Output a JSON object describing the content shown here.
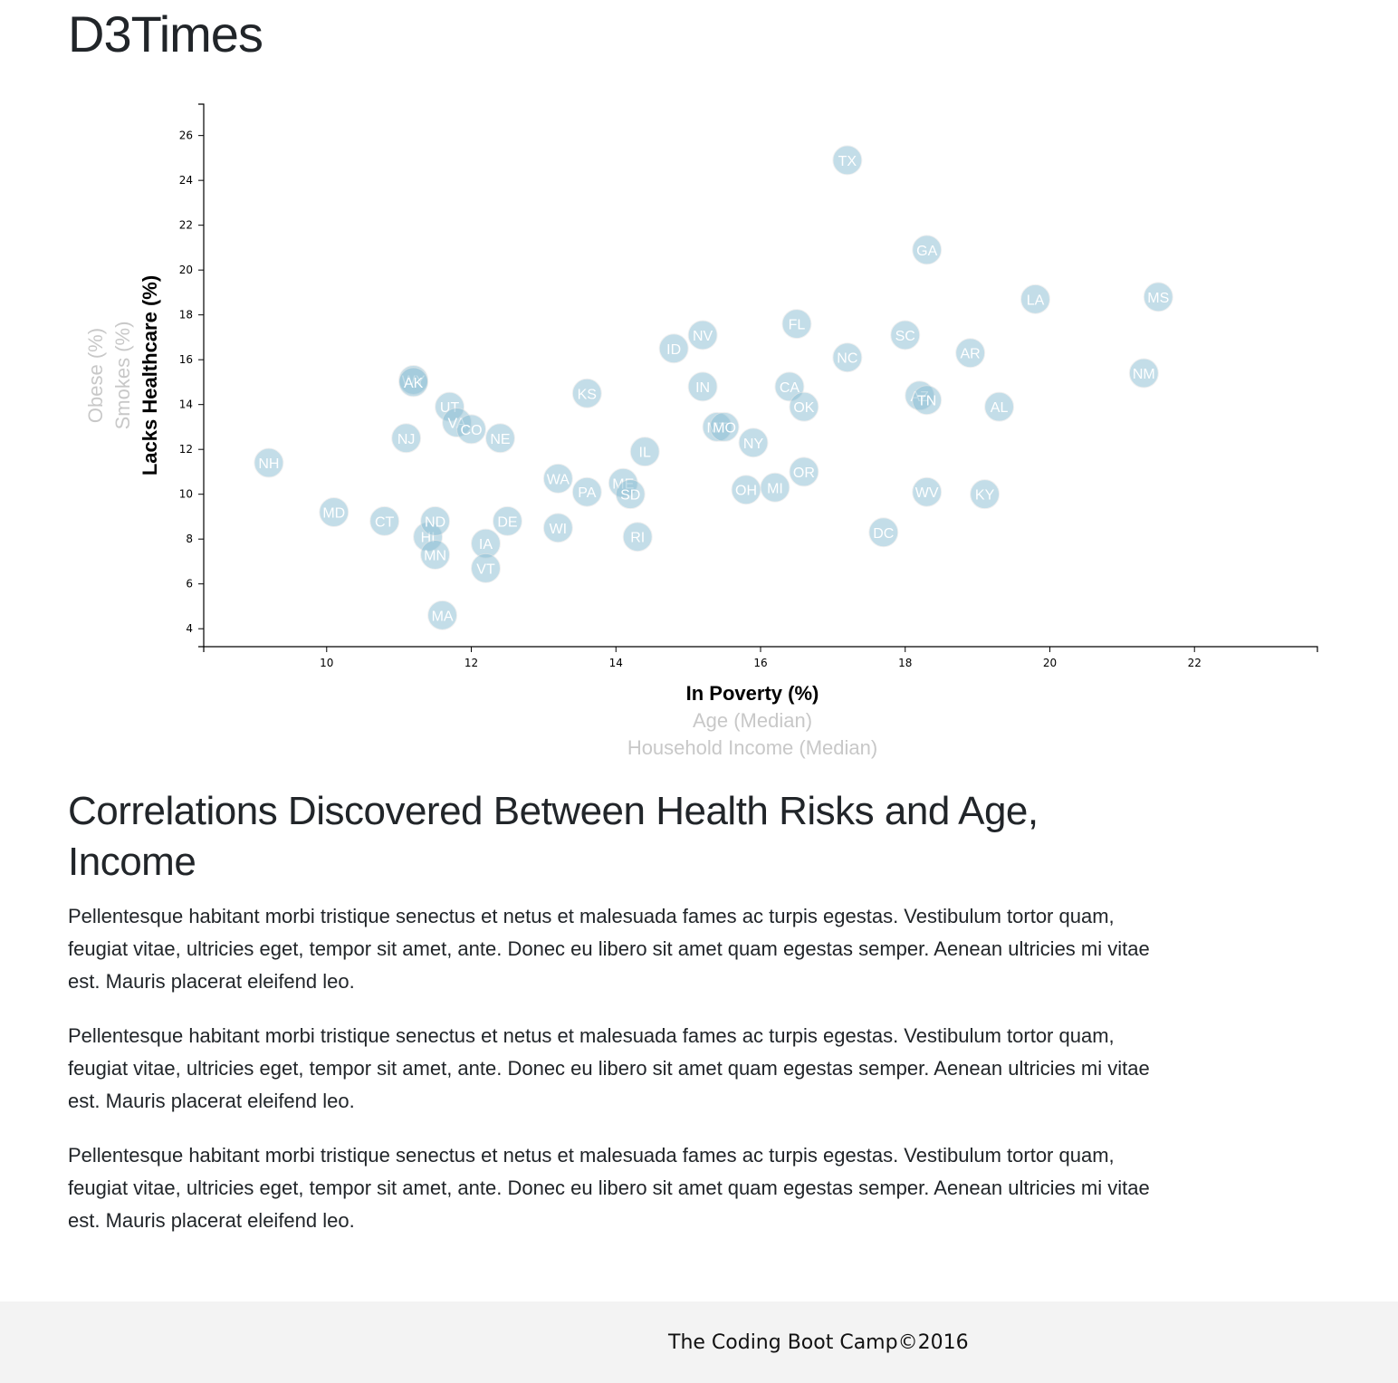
{
  "page": {
    "title": "D3Times"
  },
  "chart_data": {
    "type": "scatter",
    "x_axis": {
      "active": "In Poverty (%)",
      "labels": [
        "In Poverty (%)",
        "Age (Median)",
        "Household Income (Median)"
      ],
      "ticks": [
        10,
        12,
        14,
        16,
        18,
        20,
        22
      ],
      "range": [
        8.3,
        23.7
      ]
    },
    "y_axis": {
      "active": "Lacks Healthcare (%)",
      "labels": [
        "Lacks Healthcare (%)",
        "Smokes (%)",
        "Obese (%)"
      ],
      "ticks": [
        4,
        6,
        8,
        10,
        12,
        14,
        16,
        18,
        20,
        22,
        24,
        26
      ],
      "range": [
        3.2,
        27.4
      ]
    },
    "points": [
      {
        "abbr": "NH",
        "x": 9.2,
        "y": 11.4
      },
      {
        "abbr": "MD",
        "x": 10.1,
        "y": 9.2
      },
      {
        "abbr": "CT",
        "x": 10.8,
        "y": 8.8
      },
      {
        "abbr": "NJ",
        "x": 11.1,
        "y": 12.5
      },
      {
        "abbr": "WY",
        "x": 11.2,
        "y": 15.1
      },
      {
        "abbr": "AK",
        "x": 11.2,
        "y": 15.0
      },
      {
        "abbr": "HI",
        "x": 11.4,
        "y": 8.1
      },
      {
        "abbr": "ND",
        "x": 11.5,
        "y": 8.8
      },
      {
        "abbr": "MN",
        "x": 11.5,
        "y": 7.3
      },
      {
        "abbr": "MA",
        "x": 11.6,
        "y": 4.6
      },
      {
        "abbr": "UT",
        "x": 11.7,
        "y": 13.9
      },
      {
        "abbr": "VA",
        "x": 11.8,
        "y": 13.2
      },
      {
        "abbr": "CO",
        "x": 12.0,
        "y": 12.9
      },
      {
        "abbr": "IA",
        "x": 12.2,
        "y": 7.8
      },
      {
        "abbr": "VT",
        "x": 12.2,
        "y": 6.7
      },
      {
        "abbr": "NE",
        "x": 12.4,
        "y": 12.5
      },
      {
        "abbr": "DE",
        "x": 12.5,
        "y": 8.8
      },
      {
        "abbr": "WA",
        "x": 13.2,
        "y": 10.7
      },
      {
        "abbr": "WI",
        "x": 13.2,
        "y": 8.5
      },
      {
        "abbr": "PA",
        "x": 13.6,
        "y": 10.1
      },
      {
        "abbr": "KS",
        "x": 13.6,
        "y": 14.5
      },
      {
        "abbr": "ME",
        "x": 14.1,
        "y": 10.5
      },
      {
        "abbr": "SD",
        "x": 14.2,
        "y": 10.0
      },
      {
        "abbr": "RI",
        "x": 14.3,
        "y": 8.1
      },
      {
        "abbr": "IL",
        "x": 14.4,
        "y": 11.9
      },
      {
        "abbr": "ID",
        "x": 14.8,
        "y": 16.5
      },
      {
        "abbr": "NV",
        "x": 15.2,
        "y": 17.1
      },
      {
        "abbr": "IN",
        "x": 15.2,
        "y": 14.8
      },
      {
        "abbr": "MT",
        "x": 15.4,
        "y": 13.0
      },
      {
        "abbr": "MO",
        "x": 15.5,
        "y": 13.0
      },
      {
        "abbr": "OH",
        "x": 15.8,
        "y": 10.2
      },
      {
        "abbr": "NY",
        "x": 15.9,
        "y": 12.3
      },
      {
        "abbr": "MI",
        "x": 16.2,
        "y": 10.3
      },
      {
        "abbr": "CA",
        "x": 16.4,
        "y": 14.8
      },
      {
        "abbr": "FL",
        "x": 16.5,
        "y": 17.6
      },
      {
        "abbr": "OK",
        "x": 16.6,
        "y": 13.9
      },
      {
        "abbr": "OR",
        "x": 16.6,
        "y": 11.0
      },
      {
        "abbr": "TX",
        "x": 17.2,
        "y": 24.9
      },
      {
        "abbr": "NC",
        "x": 17.2,
        "y": 16.1
      },
      {
        "abbr": "DC",
        "x": 17.7,
        "y": 8.3
      },
      {
        "abbr": "SC",
        "x": 18.0,
        "y": 17.1
      },
      {
        "abbr": "AZ",
        "x": 18.2,
        "y": 14.4
      },
      {
        "abbr": "TN",
        "x": 18.3,
        "y": 14.2
      },
      {
        "abbr": "GA",
        "x": 18.3,
        "y": 20.9
      },
      {
        "abbr": "WV",
        "x": 18.3,
        "y": 10.1
      },
      {
        "abbr": "AR",
        "x": 18.9,
        "y": 16.3
      },
      {
        "abbr": "KY",
        "x": 19.1,
        "y": 10.0
      },
      {
        "abbr": "AL",
        "x": 19.3,
        "y": 13.9
      },
      {
        "abbr": "LA",
        "x": 19.8,
        "y": 18.7
      },
      {
        "abbr": "NM",
        "x": 21.3,
        "y": 15.4
      },
      {
        "abbr": "MS",
        "x": 21.5,
        "y": 18.8
      }
    ],
    "colors": {
      "marker": "#89bdd3",
      "marker_text": "#ffffff",
      "inactive_label": "#c8c8c8"
    }
  },
  "article": {
    "heading": "Correlations Discovered Between Health Risks and Age, Income",
    "paragraphs": [
      "Pellentesque habitant morbi tristique senectus et netus et malesuada fames ac turpis egestas. Vestibulum tortor quam, feugiat vitae, ultricies eget, tempor sit amet, ante. Donec eu libero sit amet quam egestas semper. Aenean ultricies mi vitae est. Mauris placerat eleifend leo.",
      "Pellentesque habitant morbi tristique senectus et netus et malesuada fames ac turpis egestas. Vestibulum tortor quam, feugiat vitae, ultricies eget, tempor sit amet, ante. Donec eu libero sit amet quam egestas semper. Aenean ultricies mi vitae est. Mauris placerat eleifend leo.",
      "Pellentesque habitant morbi tristique senectus et netus et malesuada fames ac turpis egestas. Vestibulum tortor quam, feugiat vitae, ultricies eget, tempor sit amet, ante. Donec eu libero sit amet quam egestas semper. Aenean ultricies mi vitae est. Mauris placerat eleifend leo."
    ]
  },
  "footer": {
    "text": "The Coding Boot Camp©2016"
  }
}
